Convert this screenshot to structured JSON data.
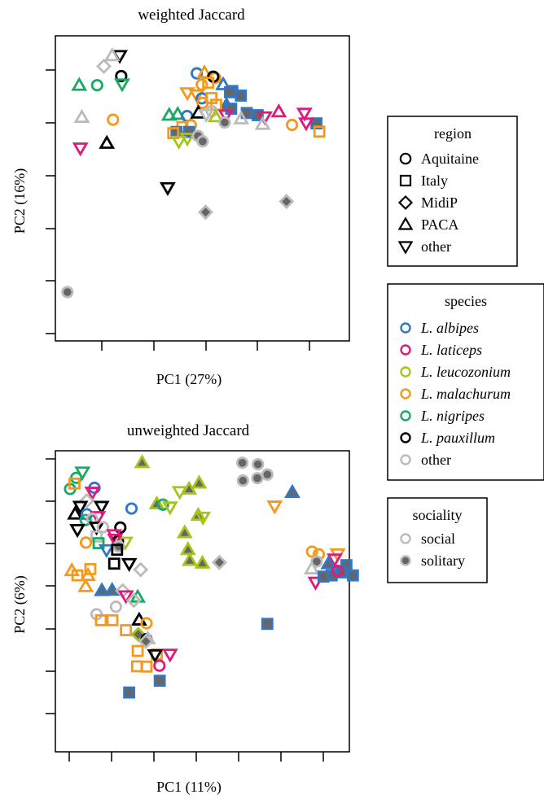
{
  "colors": {
    "L. albipes": "#3177c4",
    "L. laticeps": "#e0197a",
    "L. leucozonium": "#a9c31a",
    "L. malachurum": "#f39a1e",
    "L. nigripes": "#1aaa66",
    "L. pauxillum": "#000000",
    "other": "#bbbbbb"
  },
  "legends": {
    "region": {
      "title": "region",
      "items": [
        {
          "label": "Aquitaine",
          "shape": "circle"
        },
        {
          "label": "Italy",
          "shape": "square"
        },
        {
          "label": "MidiP",
          "shape": "diamond"
        },
        {
          "label": "PACA",
          "shape": "triangle"
        },
        {
          "label": "other",
          "shape": "triangle-down"
        }
      ]
    },
    "species": {
      "title": "species",
      "items": [
        {
          "label": "L. albipes",
          "italic": true
        },
        {
          "label": "L. laticeps",
          "italic": true
        },
        {
          "label": "L. leucozonium",
          "italic": true
        },
        {
          "label": "L. malachurum",
          "italic": true
        },
        {
          "label": "L. nigripes",
          "italic": true
        },
        {
          "label": "L. pauxillum",
          "italic": true
        },
        {
          "label": "other",
          "italic": false
        }
      ]
    },
    "sociality": {
      "title": "sociality",
      "items": [
        {
          "label": "social",
          "fill": false
        },
        {
          "label": "solitary",
          "fill": true
        }
      ]
    }
  },
  "chart_data": [
    {
      "type": "scatter",
      "title": "weighted Jaccard",
      "xlabel": "PC1 (27%)",
      "ylabel": "PC2 (16%)",
      "xlim": [
        0,
        100
      ],
      "ylim": [
        0,
        100
      ],
      "points": [
        [
          "other",
          "L. pauxillum",
          0,
          21.9,
          93.5
        ],
        [
          "triangle",
          "other",
          0,
          19.3,
          93.5
        ],
        [
          "diamond",
          "other",
          0,
          16.5,
          90.0
        ],
        [
          "circle",
          "L. pauxillum",
          0,
          22.4,
          86.8
        ],
        [
          "triangle",
          "L. nigripes",
          0,
          8.1,
          83.8
        ],
        [
          "circle",
          "L. nigripes",
          0,
          14.2,
          83.8
        ],
        [
          "other",
          "L. nigripes",
          0,
          22.7,
          84.2
        ],
        [
          "triangle",
          "other",
          0,
          9.0,
          73.3
        ],
        [
          "circle",
          "L. malachurum",
          0,
          19.6,
          72.5
        ],
        [
          "triangle",
          "L. pauxillum",
          0,
          17.5,
          64.8
        ],
        [
          "other",
          "L. laticeps",
          0,
          8.5,
          63.2
        ],
        [
          "other",
          "L. pauxillum",
          0,
          38.2,
          50.2
        ],
        [
          "diamond",
          "other",
          1,
          51.1,
          42.2
        ],
        [
          "diamond",
          "other",
          1,
          78.6,
          45.7
        ],
        [
          "circle",
          "other",
          1,
          4.1,
          16.0
        ],
        [
          "circle",
          "L. albipes",
          0,
          48.1,
          87.7
        ],
        [
          "triangle",
          "L. malachurum",
          0,
          50.7,
          87.9
        ],
        [
          "circle",
          "L. malachurum",
          0,
          54.4,
          86.2
        ],
        [
          "circle",
          "L. pauxillum",
          0,
          53.7,
          86.6
        ],
        [
          "square",
          "L. malachurum",
          0,
          52.0,
          84.6
        ],
        [
          "triangle",
          "L. albipes",
          0,
          57.1,
          84.0
        ],
        [
          "circle",
          "L. malachurum",
          0,
          49.8,
          84.0
        ],
        [
          "square",
          "L. albipes",
          1,
          60.2,
          81.9
        ],
        [
          "square",
          "L. albipes",
          1,
          59.4,
          81.5
        ],
        [
          "square",
          "L. albipes",
          1,
          63.1,
          80.4
        ],
        [
          "other",
          "L. malachurum",
          0,
          44.9,
          81.3
        ],
        [
          "other",
          "L. malachurum",
          0,
          48.1,
          80.6
        ],
        [
          "circle",
          "L. albipes",
          0,
          49.8,
          79.5
        ],
        [
          "square",
          "L. malachurum",
          0,
          53.1,
          79.6
        ],
        [
          "circle",
          "L. malachurum",
          0,
          50.1,
          78.0
        ],
        [
          "triangle",
          "L. albipes",
          1,
          58.2,
          77.3
        ],
        [
          "square",
          "L. malachurum",
          0,
          54.7,
          77.4
        ],
        [
          "square",
          "L. albipes",
          1,
          59.8,
          76.1
        ],
        [
          "square",
          "L. albipes",
          1,
          65.1,
          74.7
        ],
        [
          "square",
          "L. albipes",
          1,
          68.8,
          74.0
        ],
        [
          "triangle",
          "L. laticeps",
          0,
          76.0,
          75.1
        ],
        [
          "other",
          "L. laticeps",
          0,
          84.7,
          74.6
        ],
        [
          "other",
          "L. laticeps",
          0,
          71.2,
          73.4
        ],
        [
          "circle",
          "other",
          0,
          53.2,
          75.3
        ],
        [
          "other",
          "L. laticeps",
          0,
          58.0,
          74.0
        ],
        [
          "triangle",
          "L. nigripes",
          0,
          38.7,
          74.0
        ],
        [
          "triangle",
          "L. nigripes",
          0,
          41.6,
          74.3
        ],
        [
          "circle",
          "L. albipes",
          0,
          44.8,
          73.7
        ],
        [
          "triangle",
          "L. pauxillum",
          0,
          48.6,
          74.7
        ],
        [
          "other",
          "other",
          0,
          51.3,
          74.2
        ],
        [
          "triangle",
          "L. leucozonium",
          0,
          54.5,
          73.5
        ],
        [
          "triangle",
          "other",
          0,
          63.2,
          72.8
        ],
        [
          "circle",
          "other",
          1,
          57.6,
          71.6
        ],
        [
          "square",
          "L. albipes",
          1,
          88.8,
          71.3
        ],
        [
          "triangle",
          "other",
          0,
          70.5,
          71.0
        ],
        [
          "circle",
          "L. malachurum",
          0,
          80.5,
          70.8
        ],
        [
          "other",
          "L. laticeps",
          0,
          85.3,
          71.4
        ],
        [
          "square",
          "L. malachurum",
          0,
          89.8,
          68.6
        ],
        [
          "square",
          "L. malachurum",
          0,
          43.2,
          70.1
        ],
        [
          "circle",
          "L. malachurum",
          0,
          46.1,
          70.7
        ],
        [
          "square",
          "L. albipes",
          1,
          45.5,
          68.5
        ],
        [
          "square",
          "L. albipes",
          1,
          41.2,
          68.5
        ],
        [
          "square",
          "L. malachurum",
          0,
          40.1,
          68.1
        ],
        [
          "other",
          "L. leucozonium",
          0,
          44.9,
          66.4
        ],
        [
          "circle",
          "other",
          1,
          48.5,
          67.2
        ],
        [
          "other",
          "L. leucozonium",
          0,
          42.0,
          65.4
        ],
        [
          "circle",
          "other",
          1,
          50.1,
          65.4
        ]
      ]
    },
    {
      "type": "scatter",
      "title": "unweighted Jaccard",
      "xlabel": "PC1 (11%)",
      "ylabel": "PC2 (6%)",
      "xlim": [
        0,
        100
      ],
      "ylim": [
        0,
        100
      ],
      "points": [
        [
          "triangle",
          "L. leucozonium",
          1,
          29.5,
          96.1
        ],
        [
          "circle",
          "other",
          1,
          63.6,
          96.0
        ],
        [
          "circle",
          "other",
          1,
          68.9,
          95.5
        ],
        [
          "circle",
          "other",
          1,
          63.8,
          90.1
        ],
        [
          "circle",
          "other",
          1,
          68.7,
          90.9
        ],
        [
          "circle",
          "other",
          1,
          72.1,
          92.1
        ],
        [
          "other",
          "L. nigripes",
          0,
          9.2,
          92.9
        ],
        [
          "circle",
          "L. nigripes",
          0,
          7.1,
          91.0
        ],
        [
          "circle",
          "L. nigripes",
          0,
          5.0,
          87.3
        ],
        [
          "square",
          "L. malachurum",
          0,
          6.5,
          89.1
        ],
        [
          "circle",
          "L. albipes",
          0,
          13.3,
          87.7
        ],
        [
          "other",
          "L. laticeps",
          0,
          12.6,
          86.2
        ],
        [
          "triangle",
          "L. leucozonium",
          1,
          48.9,
          89.3
        ],
        [
          "triangle",
          "L. leucozonium",
          1,
          45.5,
          87.3
        ],
        [
          "other",
          "L. leucozonium",
          0,
          42.3,
          86.4
        ],
        [
          "triangle",
          "L. albipes",
          1,
          80.6,
          86.2
        ],
        [
          "diamond",
          "other",
          0,
          10.7,
          83.4
        ],
        [
          "other",
          "L. pauxillum",
          0,
          8.5,
          81.5
        ],
        [
          "other",
          "L. pauxillum",
          0,
          15.7,
          81.5
        ],
        [
          "circle",
          "L. albipes",
          0,
          25.9,
          80.8
        ],
        [
          "triangle",
          "L. leucozonium",
          1,
          34.5,
          82.4
        ],
        [
          "circle",
          "L. nigripes",
          0,
          36.6,
          82.1
        ],
        [
          "other",
          "L. leucozonium",
          0,
          39.0,
          81.3
        ],
        [
          "other",
          "L. malachurum",
          0,
          74.6,
          81.6
        ],
        [
          "triangle",
          "L. pauxillum",
          0,
          6.7,
          79.0
        ],
        [
          "circle",
          "L. albipes",
          0,
          10.7,
          78.9
        ],
        [
          "other",
          "L. laticeps",
          0,
          14.5,
          78.1
        ],
        [
          "triangle",
          "L. leucozonium",
          1,
          48.6,
          78.6
        ],
        [
          "circle",
          "L. nigripes",
          0,
          10.3,
          77.0
        ],
        [
          "circle",
          "other",
          0,
          12.5,
          77.4
        ],
        [
          "other",
          "L. leucozonium",
          0,
          50.2,
          77.9
        ],
        [
          "other",
          "L. pauxillum",
          0,
          14.0,
          74.6
        ],
        [
          "circle",
          "other",
          0,
          16.2,
          74.6
        ],
        [
          "circle",
          "L. pauxillum",
          0,
          22.1,
          74.5
        ],
        [
          "other",
          "L. pauxillum",
          0,
          7.5,
          73.8
        ],
        [
          "other",
          "L. laticeps",
          0,
          20.0,
          72.1
        ],
        [
          "triangle",
          "L. leucozonium",
          1,
          44.0,
          72.8
        ],
        [
          "circle",
          "L. pauxillum",
          0,
          21.3,
          70.0
        ],
        [
          "square",
          "other",
          0,
          14.0,
          71.5
        ],
        [
          "other",
          "L. leucozonium",
          0,
          23.8,
          69.6
        ],
        [
          "circle",
          "L. malachurum",
          0,
          10.4,
          69.5
        ],
        [
          "square",
          "L. nigripes",
          0,
          14.7,
          69.3
        ],
        [
          "other",
          "L. laticeps",
          0,
          20.3,
          70.6
        ],
        [
          "circle",
          "other",
          1,
          21.5,
          68.2
        ],
        [
          "triangle",
          "L. leucozonium",
          1,
          45.1,
          67.2
        ],
        [
          "other",
          "L. albipes",
          0,
          17.4,
          67.1
        ],
        [
          "square",
          "L. pauxillum",
          0,
          21.0,
          67.1
        ],
        [
          "triangle",
          "L. leucozonium",
          1,
          45.7,
          63.6
        ],
        [
          "triangle",
          "L. leucozonium",
          1,
          50.0,
          62.7
        ],
        [
          "diamond",
          "other",
          1,
          55.8,
          62.9
        ],
        [
          "square",
          "L. malachurum",
          0,
          11.9,
          60.7
        ],
        [
          "square",
          "L. pauxillum",
          0,
          20.0,
          62.5
        ],
        [
          "other",
          "L. pauxillum",
          0,
          25.1,
          62.5
        ],
        [
          "circle",
          "L. malachurum",
          0,
          87.3,
          66.5
        ],
        [
          "circle",
          "L. malachurum",
          0,
          89.6,
          65.6
        ],
        [
          "other",
          "L. malachurum",
          0,
          96.0,
          65.7
        ],
        [
          "other",
          "L. laticeps",
          0,
          95.0,
          64.0
        ],
        [
          "circle",
          "other",
          1,
          88.9,
          63.2
        ],
        [
          "triangle",
          "other",
          0,
          87.2,
          60.8
        ],
        [
          "triangle",
          "L. albipes",
          1,
          92.9,
          62.5
        ],
        [
          "square",
          "L. albipes",
          1,
          99.0,
          62.0
        ],
        [
          "square",
          "L. albipes",
          1,
          97.4,
          59.6
        ],
        [
          "triangle",
          "L. malachurum",
          0,
          5.6,
          60.2
        ],
        [
          "triangle",
          "L. malachurum",
          0,
          11.1,
          58.6
        ],
        [
          "square",
          "L. malachurum",
          0,
          7.5,
          58.6
        ],
        [
          "diamond",
          "other",
          0,
          29.0,
          60.5
        ],
        [
          "square",
          "L. albipes",
          1,
          94.0,
          58.6
        ],
        [
          "square",
          "L. albipes",
          1,
          101.2,
          58.6
        ],
        [
          "circle",
          "L. laticeps",
          0,
          96.0,
          60.1
        ],
        [
          "other",
          "L. laticeps",
          0,
          88.5,
          56.3
        ],
        [
          "square",
          "L. albipes",
          1,
          91.2,
          58.2
        ],
        [
          "triangle",
          "L. malachurum",
          0,
          10.3,
          54.9
        ],
        [
          "triangle",
          "L. albipes",
          1,
          15.8,
          53.6
        ],
        [
          "triangle",
          "L. albipes",
          1,
          19.3,
          53.7
        ],
        [
          "diamond",
          "other",
          0,
          22.9,
          53.5
        ],
        [
          "other",
          "L. laticeps",
          0,
          24.0,
          51.8
        ],
        [
          "triangle",
          "L. nigripes",
          0,
          28.0,
          51.4
        ],
        [
          "diamond",
          "other",
          0,
          26.7,
          50.3
        ],
        [
          "circle",
          "other",
          0,
          20.6,
          48.2
        ],
        [
          "circle",
          "other",
          0,
          14.0,
          45.7
        ],
        [
          "square",
          "L. malachurum",
          0,
          15.5,
          43.7
        ],
        [
          "triangle",
          "L. pauxillum",
          0,
          28.5,
          43.8
        ],
        [
          "square",
          "L. malachurum",
          0,
          19.4,
          43.7
        ],
        [
          "diamond",
          "L. leucozonium",
          1,
          28.2,
          39.0
        ],
        [
          "square",
          "L. albipes",
          1,
          72.1,
          42.5
        ],
        [
          "square",
          "L. malachurum",
          0,
          24.0,
          40.4
        ],
        [
          "circle",
          "L. malachurum",
          0,
          31.0,
          42.7
        ],
        [
          "circle",
          "L. pauxillum",
          0,
          31.0,
          37.4
        ],
        [
          "triangle",
          "other",
          0,
          31.5,
          37.6
        ],
        [
          "diamond",
          "other",
          1,
          30.8,
          36.7
        ],
        [
          "square",
          "L. malachurum",
          0,
          28.0,
          33.5
        ],
        [
          "other",
          "L. laticeps",
          0,
          39.0,
          32.4
        ],
        [
          "square",
          "L. malachurum",
          0,
          34.5,
          32.4
        ],
        [
          "other",
          "L. pauxillum",
          0,
          33.9,
          32.2
        ],
        [
          "square",
          "L. malachurum",
          0,
          27.8,
          28.4
        ],
        [
          "circle",
          "L. laticeps",
          0,
          35.4,
          28.6
        ],
        [
          "square",
          "L. malachurum",
          0,
          31.0,
          28.3
        ],
        [
          "square",
          "L. albipes",
          1,
          35.5,
          23.6
        ],
        [
          "square",
          "L. albipes",
          1,
          25.1,
          19.7
        ]
      ]
    }
  ]
}
